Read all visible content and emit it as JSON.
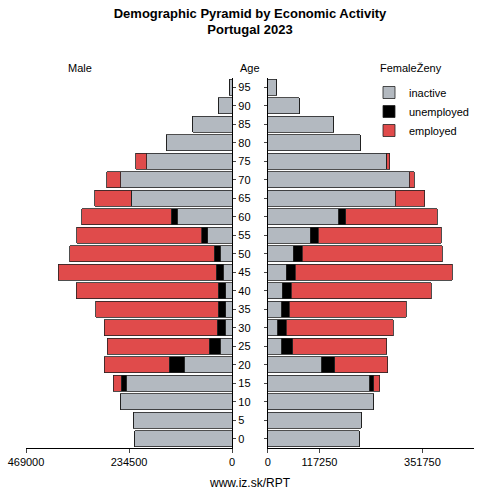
{
  "chart_data": {
    "type": "bar",
    "title": "Demographic Pyramid by Economic Activity",
    "subtitle": "Portugal 2023",
    "orientation": "horizontal",
    "stacked": true,
    "grid": false,
    "legend": "top right",
    "y_label": "Age",
    "source": "www.iz.sk/RPT",
    "categories": [
      "0",
      "5",
      "10",
      "15",
      "20",
      "25",
      "30",
      "35",
      "40",
      "45",
      "50",
      "55",
      "60",
      "65",
      "70",
      "75",
      "80",
      "85",
      "90",
      "95"
    ],
    "panels": [
      {
        "label": "Male",
        "xlim": [
          469000,
          0
        ],
        "xticks": [
          469000,
          234500,
          0
        ],
        "series": [
          {
            "name": "inactive",
            "color": "#b3b9c0",
            "values": [
              221000,
              225000,
              255000,
              241000,
              109000,
              27000,
              16000,
              14000,
              14000,
              20000,
              27000,
              55000,
              125000,
              230000,
              253000,
              194000,
              150000,
              89000,
              32000,
              7000
            ]
          },
          {
            "name": "unemployed",
            "color": "#000000",
            "values": [
              0,
              0,
              0,
              11000,
              34000,
              25000,
              18000,
              18000,
              18000,
              16000,
              14000,
              14000,
              14000,
              0,
              0,
              0,
              0,
              0,
              0,
              0
            ]
          },
          {
            "name": "employed",
            "color": "#e04b4b",
            "values": [
              0,
              0,
              0,
              18000,
              148000,
              232000,
              257000,
              278000,
              323000,
              360000,
              328000,
              285000,
              203000,
              82000,
              32000,
              25000,
              0,
              0,
              0,
              0
            ]
          }
        ]
      },
      {
        "label": "FemaleŽeny",
        "xlim": [
          0,
          469000
        ],
        "xticks": [
          0,
          117250,
          351750
        ],
        "series": [
          {
            "name": "inactive",
            "color": "#b3b9c0",
            "values": [
              208000,
              212000,
              241000,
              232000,
              123000,
              31000,
              22000,
              31000,
              33000,
              42000,
              58000,
              96000,
              161000,
              290000,
              322000,
              270000,
              210000,
              150000,
              71000,
              20000
            ]
          },
          {
            "name": "unemployed",
            "color": "#000000",
            "values": [
              0,
              0,
              0,
              9000,
              29000,
              25000,
              20000,
              18000,
              20000,
              20000,
              20000,
              18000,
              16000,
              0,
              0,
              0,
              0,
              0,
              0,
              0
            ]
          },
          {
            "name": "employed",
            "color": "#e04b4b",
            "values": [
              0,
              0,
              0,
              13000,
              121000,
              214000,
              243000,
              266000,
              319000,
              357000,
              319000,
              281000,
              208000,
              67000,
              11000,
              7000,
              0,
              0,
              0,
              0
            ]
          }
        ]
      }
    ]
  }
}
